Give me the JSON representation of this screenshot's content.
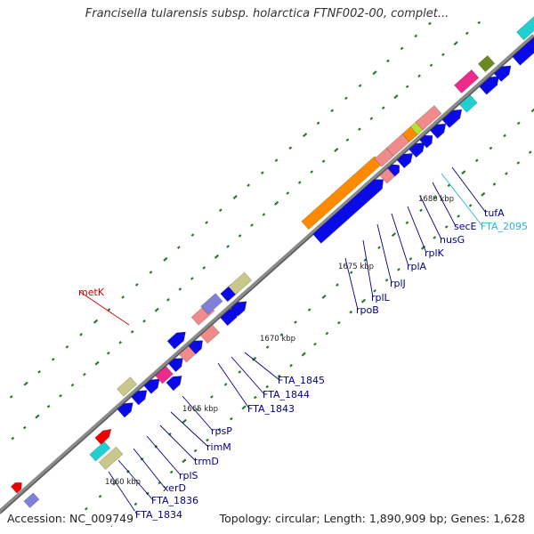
{
  "title": "Francisella tularensis subsp. holarctica FTNF002-00, complet...",
  "footer": {
    "accession": "Accession: NC_009749",
    "topology": "Topology: circular; Length: 1,890,909 bp; Genes: 1,628"
  },
  "colors": {
    "backbone": "#8a8a8a",
    "tick": "#2a7a2a",
    "blue": "#0a0ae6",
    "salmon": "#ef8b8b",
    "orange": "#ff8a00",
    "red": "#ee0000",
    "magenta": "#ee2a8c",
    "olive": "#c8c88a",
    "slate": "#8080d8",
    "cyan": "#20d0d0",
    "darkolive": "#6a8a20",
    "lime": "#b8e030",
    "label_blue": "#000080",
    "label_red": "#cc0000",
    "label_cyan": "#20b8d8"
  },
  "kbp_markers": [
    "1660 kbp",
    "1665 kbp",
    "1670 kbp",
    "1675 kbp",
    "1680 kbp"
  ],
  "gene_labels": [
    {
      "id": "metK",
      "text": "metK",
      "color": "red"
    },
    {
      "id": "FTA_1845",
      "text": "FTA_1845",
      "color": "blue"
    },
    {
      "id": "FTA_1844",
      "text": "FTA_1844",
      "color": "blue"
    },
    {
      "id": "FTA_1843",
      "text": "FTA_1843",
      "color": "blue"
    },
    {
      "id": "rpsP",
      "text": "rpsP",
      "color": "blue"
    },
    {
      "id": "rimM",
      "text": "rimM",
      "color": "blue"
    },
    {
      "id": "trmD",
      "text": "trmD",
      "color": "blue"
    },
    {
      "id": "rplS",
      "text": "rplS",
      "color": "blue"
    },
    {
      "id": "xerD",
      "text": "xerD",
      "color": "blue"
    },
    {
      "id": "FTA_1836",
      "text": "FTA_1836",
      "color": "blue"
    },
    {
      "id": "FTA_1834",
      "text": "FTA_1834",
      "color": "blue"
    },
    {
      "id": "rpoB",
      "text": "rpoB",
      "color": "blue"
    },
    {
      "id": "rplL",
      "text": "rplL",
      "color": "blue"
    },
    {
      "id": "rplJ",
      "text": "rplJ",
      "color": "blue"
    },
    {
      "id": "rplA",
      "text": "rplA",
      "color": "blue"
    },
    {
      "id": "rplK",
      "text": "rplK",
      "color": "blue"
    },
    {
      "id": "nusG",
      "text": "nusG",
      "color": "blue"
    },
    {
      "id": "secE",
      "text": "secE",
      "color": "blue"
    },
    {
      "id": "FTA_2095",
      "text": "FTA_2095",
      "color": "cyan"
    },
    {
      "id": "tufA",
      "text": "tufA",
      "color": "blue"
    }
  ],
  "features": [
    {
      "color": "blue",
      "arrow": true
    },
    {
      "color": "salmon",
      "arrow": false
    },
    {
      "color": "orange",
      "arrow": false
    },
    {
      "color": "red",
      "arrow": true
    },
    {
      "color": "magenta",
      "arrow": false
    },
    {
      "color": "olive",
      "arrow": false
    },
    {
      "color": "slate",
      "arrow": false
    },
    {
      "color": "cyan",
      "arrow": false
    },
    {
      "color": "darkolive",
      "arrow": false
    },
    {
      "color": "lime",
      "arrow": false
    }
  ]
}
